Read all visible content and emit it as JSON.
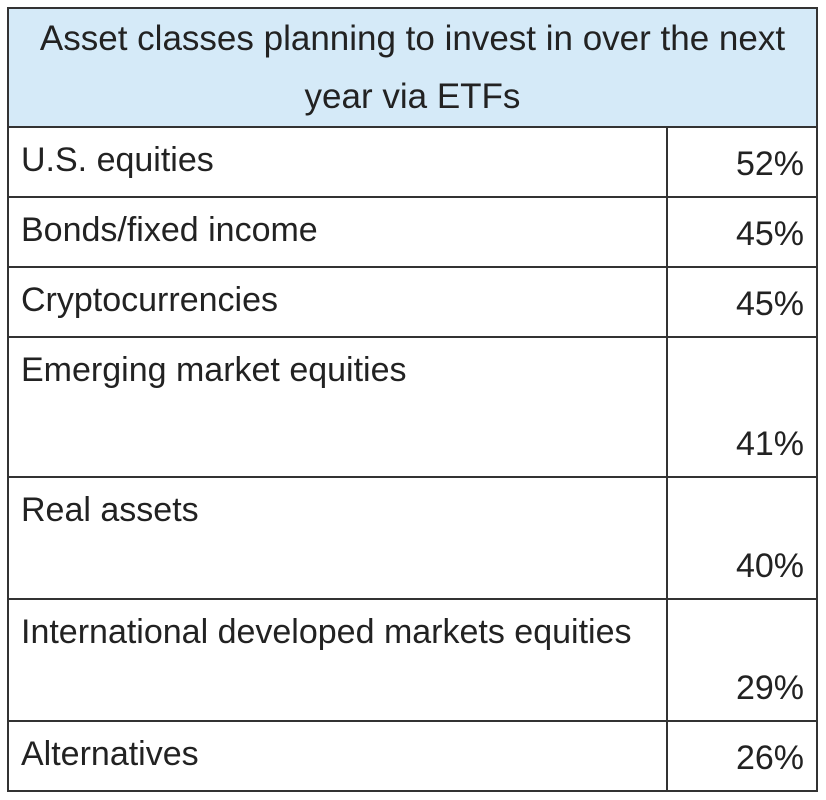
{
  "table": {
    "title": "Asset classes planning to invest in over the next year via ETFs",
    "rows": [
      [
        "U.S. equities",
        "52%"
      ],
      [
        "Bonds/fixed income",
        "45%"
      ],
      [
        "Cryptocurrencies",
        "45%"
      ],
      [
        "Emerging market equities",
        "41%"
      ],
      [
        "Real assets",
        "40%"
      ],
      [
        "International developed markets equities",
        "29%"
      ],
      [
        "Alternatives",
        "26%"
      ]
    ]
  }
}
